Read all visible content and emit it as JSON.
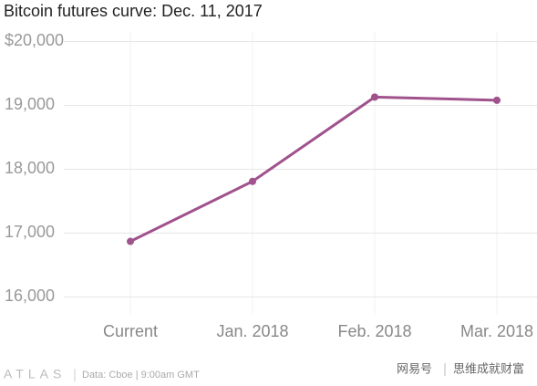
{
  "chart_data": {
    "type": "line",
    "title": "Bitcoin futures curve: Dec. 11, 2017",
    "categories": [
      "Current",
      "Jan. 2018",
      "Feb. 2018",
      "Mar. 2018"
    ],
    "values": [
      16870,
      17810,
      19130,
      19080
    ],
    "color": "#a0528c",
    "ylim": [
      15720,
      20150
    ],
    "yticks": [
      {
        "value": 16000,
        "label": "16,000"
      },
      {
        "value": 17000,
        "label": "17,000"
      },
      {
        "value": 18000,
        "label": "18,000"
      },
      {
        "value": 19000,
        "label": "19,000"
      },
      {
        "value": 20000,
        "label": "$20,000"
      }
    ],
    "grid": true,
    "logo": "ATLAS",
    "source": "Data: Cboe | 9:00am GMT"
  },
  "watermark": [
    "网易号",
    "思维成就财富"
  ]
}
